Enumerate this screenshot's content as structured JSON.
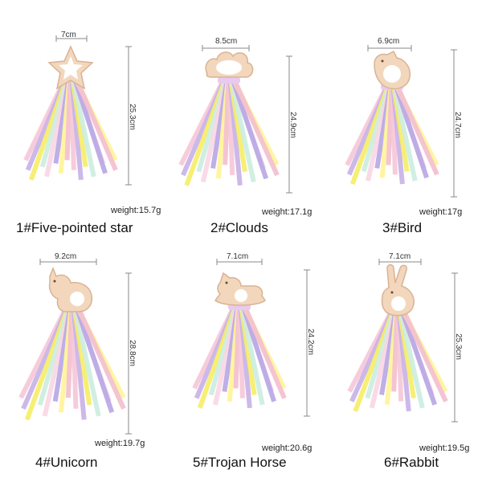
{
  "ribbon_colors": [
    "#f6c8d8",
    "#c8b4e8",
    "#f7ee6a",
    "#cdeee0",
    "#f9d7e4",
    "#b9a9e6",
    "#fff59a",
    "#f4c0d0"
  ],
  "ring_color": "#f2d7bd",
  "ring_stroke": "#d9b393",
  "products": [
    {
      "name": "1#Five-pointed star",
      "width": "7cm",
      "length": "25.3cm",
      "weight": "weight:15.7g",
      "shape": "star-teether-icon"
    },
    {
      "name": "2#Clouds",
      "width": "8.5cm",
      "length": "24.9cm",
      "weight": "weight:17.1g",
      "shape": "cloud-teether-icon"
    },
    {
      "name": "3#Bird",
      "width": "6.9cm",
      "length": "24.7cm",
      "weight": "weight:17g",
      "shape": "bird-teether-icon"
    },
    {
      "name": "4#Unicorn",
      "width": "9.2cm",
      "length": "28.8cm",
      "weight": "weight:19.7g",
      "shape": "unicorn-teether-icon"
    },
    {
      "name": "5#Trojan Horse",
      "width": "7.1cm",
      "length": "24.2cm",
      "weight": "weight:20.6g",
      "shape": "rocking-horse-teether-icon"
    },
    {
      "name": "6#Rabbit",
      "width": "7.1cm",
      "length": "25.3cm",
      "weight": "weight:19.5g",
      "shape": "rabbit-teether-icon"
    }
  ]
}
